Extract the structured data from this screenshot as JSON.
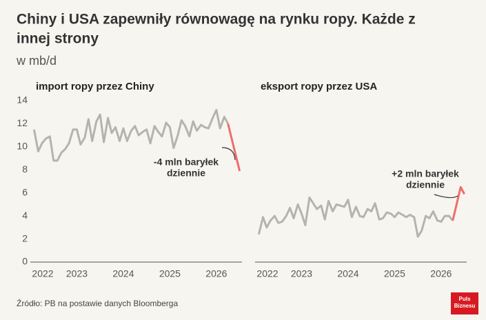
{
  "header": {
    "title": [
      "Chiny i USA zapewniły równowagę na rynku ropy. Każde z",
      "innej strony"
    ],
    "subtitle": "w mb/d"
  },
  "chart_data": [
    {
      "type": "line",
      "title": "import ropy przez Chiny",
      "xlim": [
        2022,
        2026.55
      ],
      "xticks": [
        2022,
        2023,
        2024,
        2025,
        2026
      ],
      "ylim": [
        0,
        14
      ],
      "yticks": [
        0,
        2,
        4,
        6,
        8,
        10,
        12,
        14
      ],
      "annotation": [
        "-4 mln baryłek",
        "dziennie"
      ],
      "series": [
        {
          "color": "#b4b4aa",
          "x": [
            2022.08,
            2022.17,
            2022.25,
            2022.33,
            2022.42,
            2022.5,
            2022.58,
            2022.67,
            2022.75,
            2022.83,
            2022.92,
            2023.0,
            2023.08,
            2023.17,
            2023.25,
            2023.33,
            2023.42,
            2023.5,
            2023.58,
            2023.67,
            2023.75,
            2023.83,
            2023.92,
            2024.0,
            2024.08,
            2024.17,
            2024.25,
            2024.33,
            2024.42,
            2024.5,
            2024.58,
            2024.67,
            2024.75,
            2024.83,
            2024.92,
            2025.0,
            2025.08,
            2025.17,
            2025.25,
            2025.33,
            2025.42,
            2025.5,
            2025.58,
            2025.67,
            2025.75,
            2025.83,
            2025.92,
            2026.0,
            2026.08,
            2026.17,
            2026.25
          ],
          "values": [
            11.5,
            9.6,
            10.3,
            10.7,
            10.9,
            8.8,
            8.8,
            9.5,
            9.8,
            10.3,
            11.5,
            11.5,
            10.2,
            10.8,
            12.4,
            10.5,
            12.2,
            12.8,
            10.4,
            12.5,
            11.2,
            11.7,
            10.5,
            11.6,
            10.5,
            11.4,
            11.8,
            11.0,
            11.3,
            11.5,
            10.3,
            11.8,
            11.3,
            10.9,
            12.1,
            11.7,
            9.9,
            11.0,
            12.3,
            11.8,
            10.9,
            12.2,
            11.4,
            11.9,
            11.7,
            11.6,
            12.5,
            13.2,
            11.6,
            12.6,
            12.0
          ]
        },
        {
          "color": "#f06b6b",
          "x": [
            2026.25,
            2026.5
          ],
          "values": [
            12.0,
            7.9
          ]
        }
      ]
    },
    {
      "type": "line",
      "title": "eksport ropy przez USA",
      "xlim": [
        2022,
        2026.55
      ],
      "xticks": [
        2022,
        2023,
        2024,
        2025,
        2026
      ],
      "ylim": [
        0,
        14
      ],
      "annotation": [
        "+2 mln baryłek",
        "dziennie"
      ],
      "series": [
        {
          "color": "#b4b4aa",
          "x": [
            2022.08,
            2022.17,
            2022.25,
            2022.33,
            2022.42,
            2022.5,
            2022.58,
            2022.67,
            2022.75,
            2022.83,
            2022.92,
            2023.0,
            2023.08,
            2023.17,
            2023.25,
            2023.33,
            2023.42,
            2023.5,
            2023.58,
            2023.67,
            2023.75,
            2023.83,
            2023.92,
            2024.0,
            2024.08,
            2024.17,
            2024.25,
            2024.33,
            2024.42,
            2024.5,
            2024.58,
            2024.67,
            2024.75,
            2024.83,
            2024.92,
            2025.0,
            2025.08,
            2025.17,
            2025.25,
            2025.33,
            2025.42,
            2025.5,
            2025.58,
            2025.67,
            2025.75,
            2025.83,
            2025.92,
            2026.0,
            2026.08,
            2026.17,
            2026.25
          ],
          "values": [
            2.4,
            3.9,
            3.0,
            3.6,
            4.0,
            3.4,
            3.5,
            4.0,
            4.7,
            3.8,
            5.0,
            4.2,
            3.2,
            5.6,
            5.1,
            4.6,
            4.9,
            3.7,
            5.3,
            4.4,
            5.0,
            4.9,
            4.8,
            5.4,
            3.9,
            4.8,
            4.0,
            3.9,
            4.6,
            4.4,
            5.1,
            3.7,
            3.8,
            4.3,
            4.2,
            3.9,
            4.3,
            4.1,
            3.9,
            4.1,
            3.9,
            2.2,
            2.7,
            4.0,
            3.8,
            4.4,
            3.6,
            3.5,
            4.0,
            4.0,
            3.6
          ]
        },
        {
          "color": "#f06b6b",
          "x": [
            2026.25,
            2026.42,
            2026.5
          ],
          "values": [
            3.6,
            6.5,
            5.9
          ]
        }
      ]
    }
  ],
  "footer": {
    "source": "Źródło: PB na postawie danych Bloomberga",
    "logo": [
      "Puls",
      "Biznesu"
    ]
  }
}
